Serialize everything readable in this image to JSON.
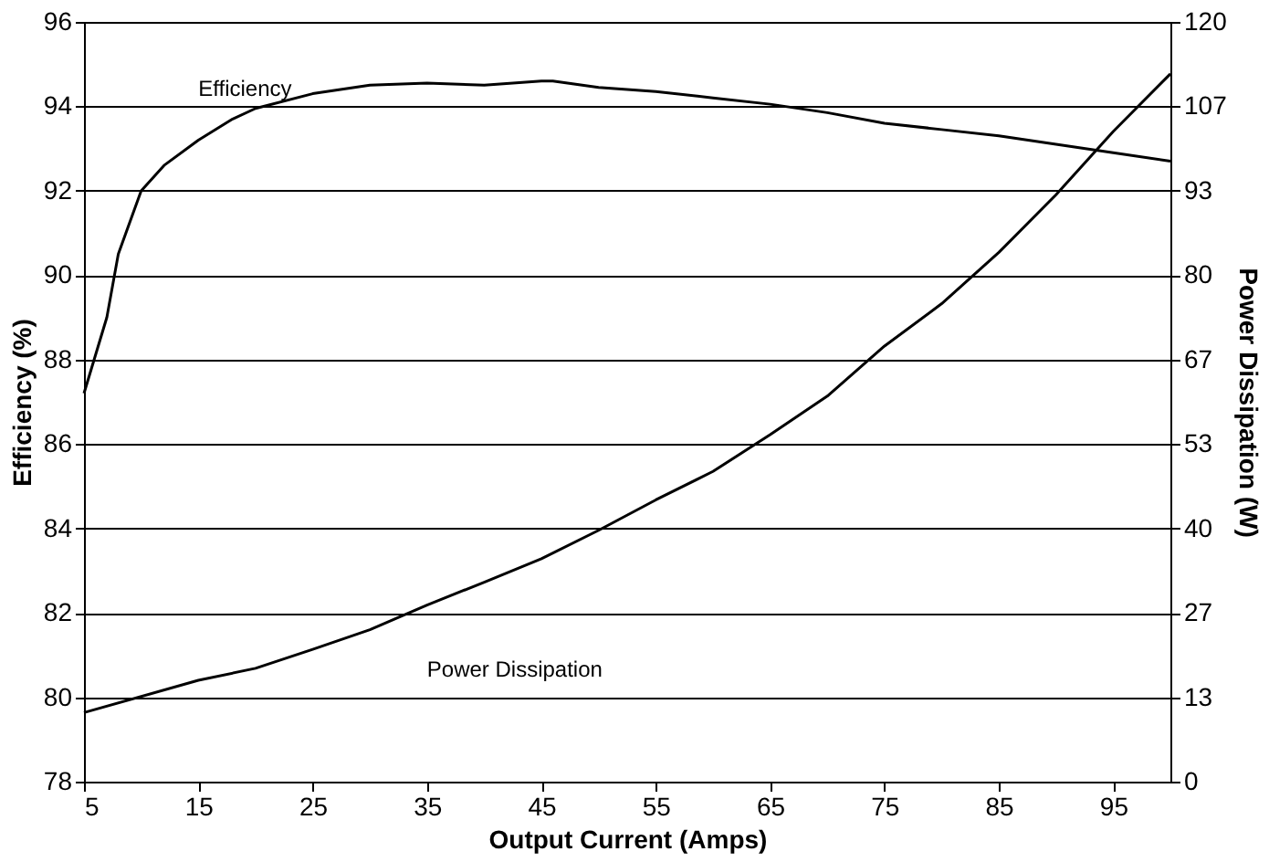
{
  "chart_data": {
    "type": "line",
    "xlabel": "Output Current (Amps)",
    "ylabel": "Efficiency (%)",
    "y2label": "Power Dissipation (W)",
    "xlim": [
      5,
      100
    ],
    "xticks": [
      5,
      15,
      25,
      35,
      45,
      55,
      65,
      75,
      85,
      95
    ],
    "ylim": [
      78,
      96
    ],
    "yticks": [
      78,
      80,
      82,
      84,
      86,
      88,
      90,
      92,
      94,
      96
    ],
    "y2lim": [
      0,
      120
    ],
    "y2ticks": [
      0,
      {
        "value": 13.33,
        "label": "13"
      },
      {
        "value": 26.67,
        "label": "27"
      },
      40,
      {
        "value": 53.33,
        "label": "53"
      },
      {
        "value": 66.67,
        "label": "67"
      },
      80,
      {
        "value": 93.33,
        "label": "93"
      },
      {
        "value": 106.67,
        "label": "107"
      },
      120
    ],
    "grid": "y",
    "marker": "none",
    "line_style": "solid",
    "series": [
      {
        "name": "Efficiency",
        "color": "#000000",
        "x": [
          5,
          7,
          8,
          10,
          12,
          15,
          18,
          20,
          25,
          30,
          35,
          40,
          45,
          46,
          50,
          55,
          60,
          65,
          70,
          75,
          80,
          85,
          90,
          95,
          100
        ],
        "values": [
          87.2,
          89,
          90.5,
          92,
          92.6,
          93.2,
          93.7,
          93.95,
          94.3,
          94.5,
          94.55,
          94.5,
          94.6,
          94.6,
          94.45,
          94.35,
          94.2,
          94.05,
          93.85,
          93.6,
          93.45,
          93.3,
          93.1,
          92.9,
          92.7
        ]
      },
      {
        "name": "Power Dissipation",
        "color": "#000000",
        "axis": "y2",
        "x": [
          5,
          15,
          20,
          25,
          30,
          35,
          40,
          45,
          50,
          55,
          60,
          65,
          70,
          75,
          80,
          85,
          90,
          95,
          100
        ],
        "values": [
          10.9,
          16,
          17.9,
          20.9,
          24,
          27.9,
          31.5,
          35.2,
          39.7,
          44.5,
          49,
          54.8,
          60.9,
          68.8,
          75.5,
          83.6,
          92.7,
          102.7,
          111.8
        ]
      }
    ]
  }
}
